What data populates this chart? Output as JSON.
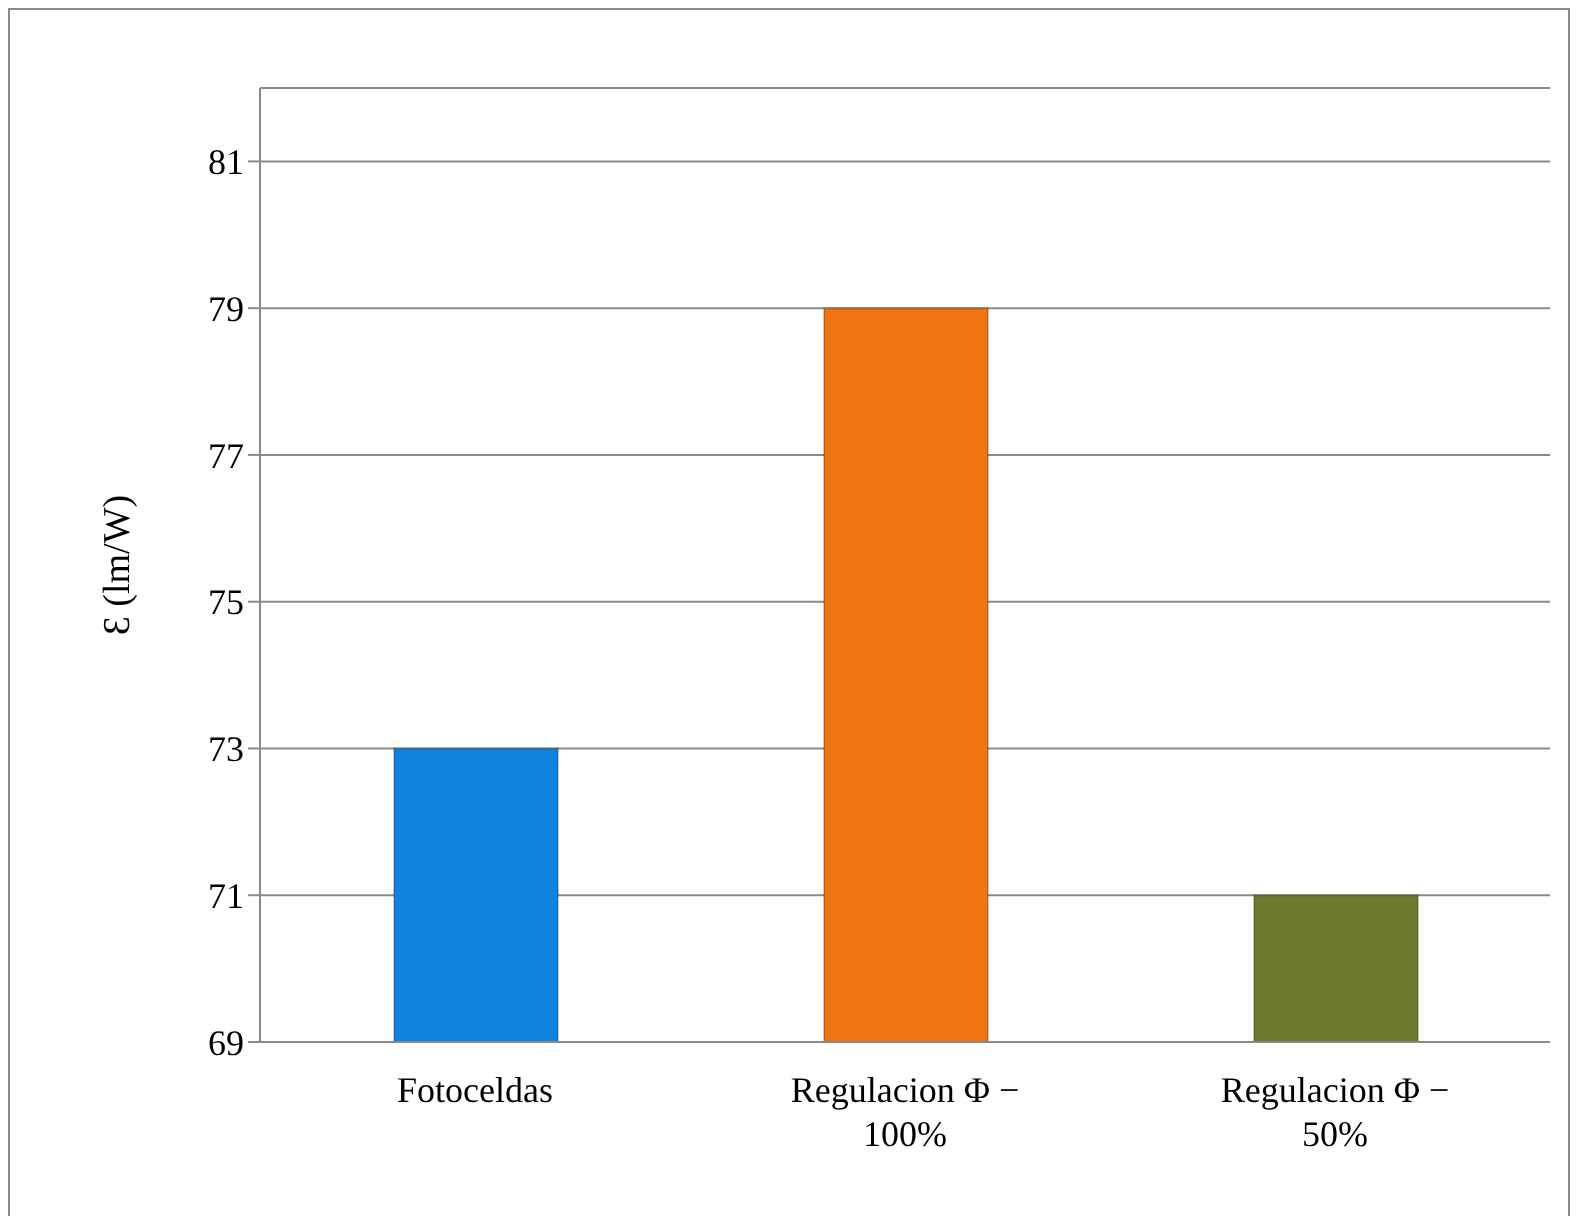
{
  "chart_data": {
    "type": "bar",
    "ylabel": "Ɛ (lm/W)",
    "categories": [
      "Fotoceldas",
      "Regulacion Φ − 100%",
      "Regulacion Φ − 50%"
    ],
    "values": [
      73,
      79,
      71
    ],
    "colors": [
      "#0f82e0",
      "#f07412",
      "#6b7a2c"
    ],
    "ylim": [
      69,
      82
    ],
    "yticks": [
      69,
      71,
      73,
      75,
      77,
      79,
      81
    ],
    "grid": "y"
  }
}
